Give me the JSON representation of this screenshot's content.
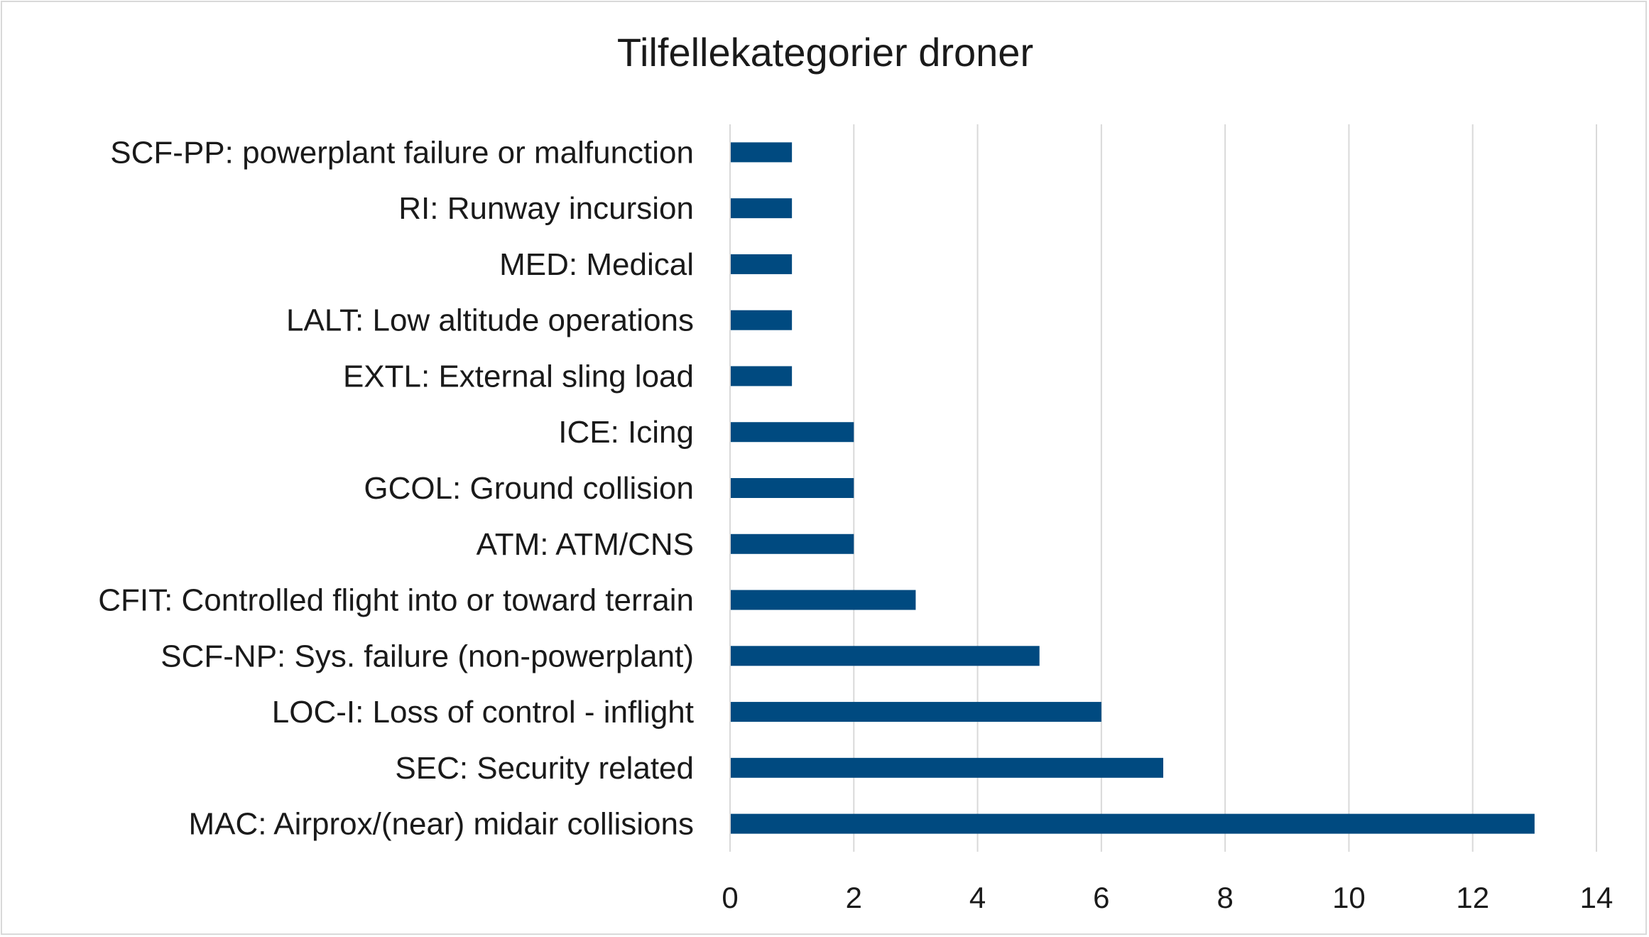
{
  "chart_data": {
    "type": "bar",
    "orientation": "horizontal",
    "title": "Tilfellekategorier droner",
    "xlabel": "",
    "ylabel": "",
    "categories": [
      "MAC: Airprox/(near) midair collisions",
      "SEC: Security related",
      "LOC-I: Loss of control - inflight",
      "SCF-NP: Sys. failure (non-powerplant)",
      "CFIT: Controlled flight into or toward terrain",
      "ATM: ATM/CNS",
      "GCOL: Ground collision",
      "ICE: Icing",
      "EXTL: External sling load",
      "LALT: Low altitude operations",
      "MED: Medical",
      "RI: Runway incursion",
      "SCF-PP: powerplant failure or malfunction"
    ],
    "values": [
      13,
      7,
      6,
      5,
      3,
      2,
      2,
      2,
      1,
      1,
      1,
      1,
      1
    ],
    "xlim": [
      0,
      14
    ],
    "xticks": [
      "0",
      "2",
      "4",
      "6",
      "8",
      "10",
      "12",
      "14"
    ],
    "grid": "vertical",
    "legend": "none",
    "bar_color": "#004a80",
    "grid_color": "#d9d9d9"
  }
}
